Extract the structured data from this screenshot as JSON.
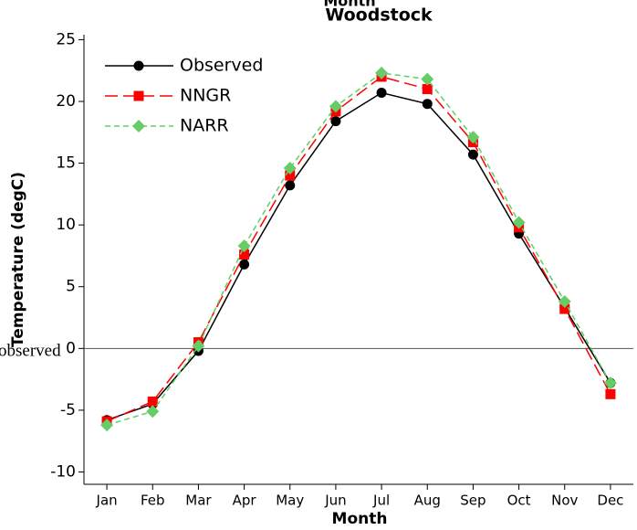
{
  "chart_data": {
    "type": "line",
    "title": "Woodstock",
    "annotations": [
      "Month",
      "observed"
    ],
    "x_label": "Month",
    "y_label": "Temperature (degC)",
    "categories": [
      "Jan",
      "Feb",
      "Mar",
      "Apr",
      "May",
      "Jun",
      "Jul",
      "Aug",
      "Sep",
      "Oct",
      "Nov",
      "Dec"
    ],
    "series": [
      {
        "name": "Observed",
        "color": "#000000",
        "line_style": "solid",
        "marker": "circle",
        "values": [
          -5.8,
          -4.5,
          -0.2,
          6.8,
          13.2,
          18.4,
          20.7,
          19.8,
          15.7,
          9.3,
          3.3,
          -2.8
        ]
      },
      {
        "name": "NNGR",
        "color": "#ff0000",
        "line_style": "dashed",
        "marker": "square",
        "values": [
          -5.9,
          -4.3,
          0.5,
          7.6,
          14.0,
          19.2,
          22.0,
          21.0,
          16.7,
          9.8,
          3.2,
          -3.7
        ]
      },
      {
        "name": "NARR",
        "color": "#66cc66",
        "line_style": "dotted",
        "marker": "diamond",
        "values": [
          -6.2,
          -5.1,
          0.2,
          8.3,
          14.6,
          19.6,
          22.3,
          21.8,
          17.1,
          10.2,
          3.8,
          -2.8
        ]
      }
    ],
    "ylim": [
      -11,
      25.4
    ],
    "yticks": [
      -10,
      -5,
      0,
      5,
      10,
      15,
      20,
      25
    ],
    "reference_line": 0,
    "grid": false,
    "legend": "upper-left"
  }
}
